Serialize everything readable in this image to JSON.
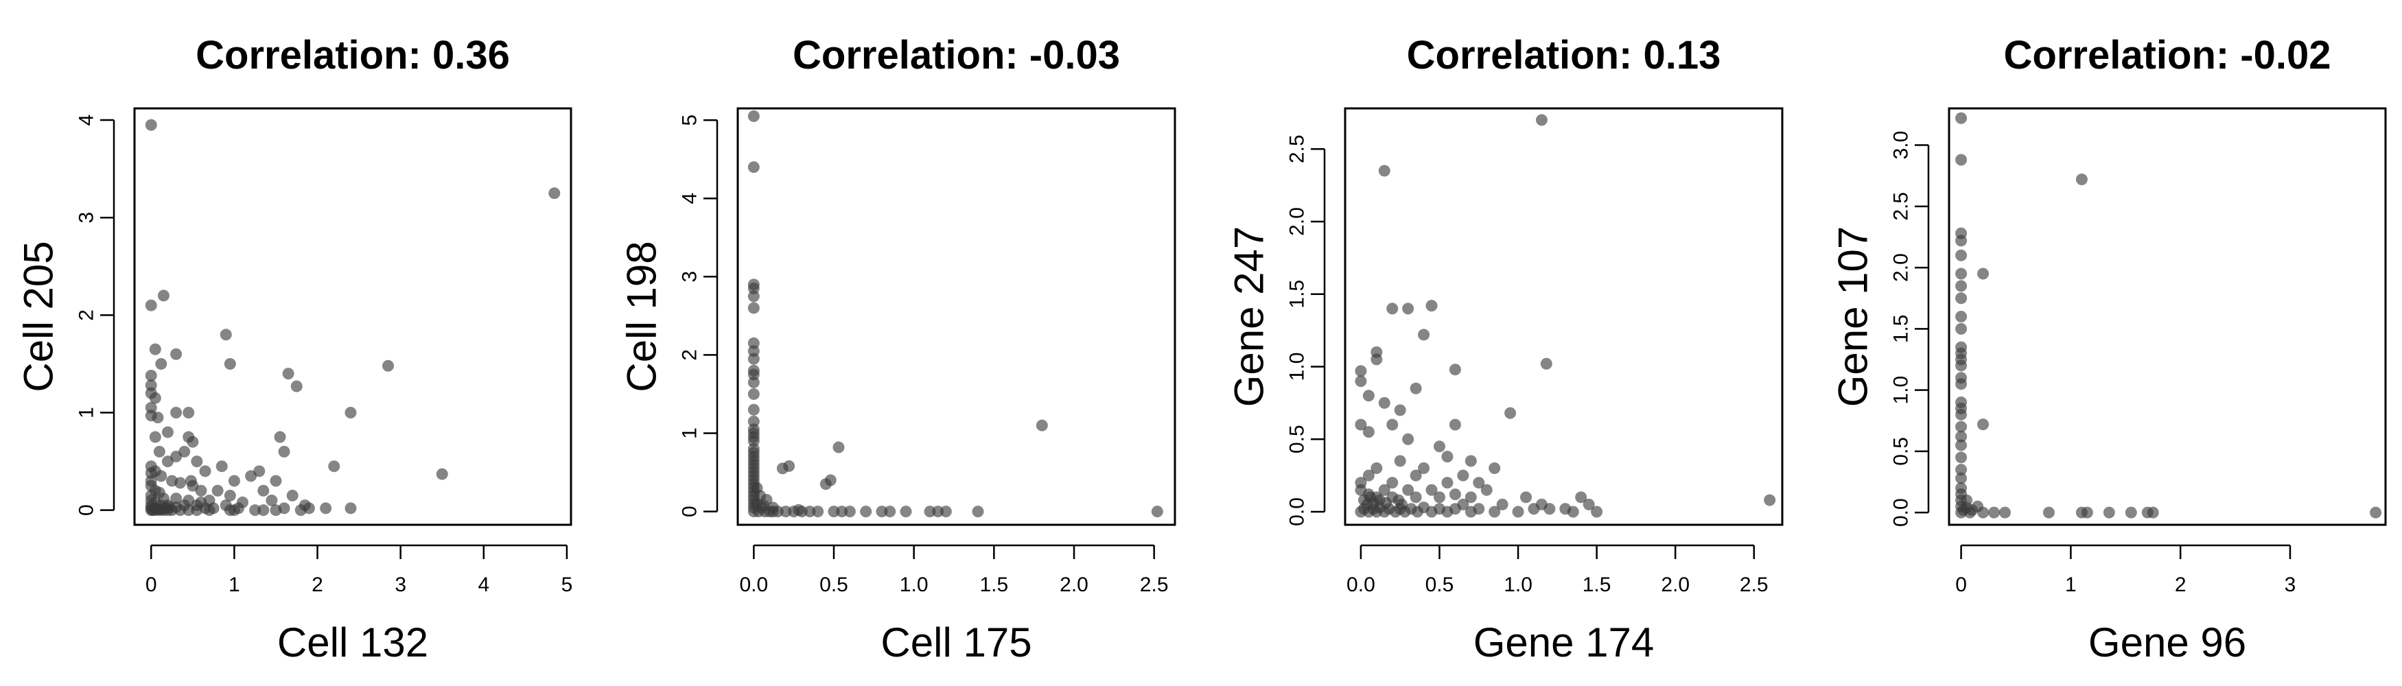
{
  "chart_data": [
    {
      "type": "scatter",
      "title": "Correlation: 0.36",
      "xlabel": "Cell 132",
      "ylabel": "Cell 205",
      "xlim": [
        -0.2,
        5.05
      ],
      "ylim": [
        -0.15,
        4.12
      ],
      "xticks": [
        0,
        1,
        2,
        3,
        4,
        5
      ],
      "yticks": [
        0,
        1,
        2,
        3,
        4
      ],
      "point_color": "#3a3a3a",
      "points": [
        [
          0,
          3.95
        ],
        [
          4.85,
          3.25
        ],
        [
          0.15,
          2.2
        ],
        [
          0,
          2.1
        ],
        [
          0.05,
          1.65
        ],
        [
          0.3,
          1.6
        ],
        [
          0.12,
          1.5
        ],
        [
          0,
          1.38
        ],
        [
          0,
          1.28
        ],
        [
          0,
          1.2
        ],
        [
          0.05,
          1.15
        ],
        [
          0,
          1.05
        ],
        [
          0,
          0.97
        ],
        [
          0.08,
          0.95
        ],
        [
          0.45,
          1.0
        ],
        [
          0.2,
          0.8
        ],
        [
          0.05,
          0.75
        ],
        [
          0.5,
          0.7
        ],
        [
          0.45,
          0.75
        ],
        [
          0.1,
          0.6
        ],
        [
          0.3,
          0.55
        ],
        [
          0.2,
          0.5
        ],
        [
          0,
          0.45
        ],
        [
          0.05,
          0.4
        ],
        [
          0,
          0.38
        ],
        [
          0.12,
          0.35
        ],
        [
          0.25,
          0.3
        ],
        [
          0.35,
          0.28
        ],
        [
          0.48,
          0.3
        ],
        [
          0.5,
          0.25
        ],
        [
          0,
          0.3
        ],
        [
          0,
          0.25
        ],
        [
          0.05,
          0.2
        ],
        [
          0.1,
          0.18
        ],
        [
          0,
          0.15
        ],
        [
          0.15,
          0.12
        ],
        [
          0.3,
          0.12
        ],
        [
          0.45,
          0.1
        ],
        [
          0.6,
          0.08
        ],
        [
          0.7,
          0.1
        ],
        [
          0,
          0.1
        ],
        [
          0.05,
          0.08
        ],
        [
          0.12,
          0.05
        ],
        [
          0.2,
          0.05
        ],
        [
          0.3,
          0.03
        ],
        [
          0.4,
          0.05
        ],
        [
          0.55,
          0.05
        ],
        [
          0.65,
          0.02
        ],
        [
          0,
          0.05
        ],
        [
          0.05,
          0.02
        ],
        [
          0.1,
          0
        ],
        [
          0.15,
          0
        ],
        [
          0.2,
          0
        ],
        [
          0.25,
          0
        ],
        [
          0.35,
          0
        ],
        [
          0.45,
          0
        ],
        [
          0.55,
          0
        ],
        [
          0.7,
          0
        ],
        [
          0.75,
          0.02
        ],
        [
          0.9,
          0.05
        ],
        [
          0.95,
          0
        ],
        [
          1.0,
          0
        ],
        [
          1.05,
          0.02
        ],
        [
          1.25,
          0
        ],
        [
          1.35,
          0
        ],
        [
          1.5,
          0
        ],
        [
          1.6,
          0.02
        ],
        [
          1.8,
          0
        ],
        [
          1.9,
          0.02
        ],
        [
          2.1,
          0.02
        ],
        [
          0.9,
          1.8
        ],
        [
          0.95,
          1.5
        ],
        [
          0.85,
          0.45
        ],
        [
          1.0,
          0.3
        ],
        [
          1.2,
          0.35
        ],
        [
          1.3,
          0.4
        ],
        [
          1.5,
          0.3
        ],
        [
          1.55,
          0.75
        ],
        [
          1.6,
          0.6
        ],
        [
          1.65,
          1.4
        ],
        [
          1.75,
          1.27
        ],
        [
          1.35,
          0.2
        ],
        [
          1.45,
          0.1
        ],
        [
          1.7,
          0.15
        ],
        [
          1.85,
          0.05
        ],
        [
          2.2,
          0.45
        ],
        [
          2.4,
          1.0
        ],
        [
          2.4,
          0.02
        ],
        [
          2.85,
          1.48
        ],
        [
          3.5,
          0.37
        ],
        [
          0.55,
          0.5
        ],
        [
          0.65,
          0.4
        ],
        [
          0.8,
          0.2
        ],
        [
          0.95,
          0.15
        ],
        [
          1.1,
          0.08
        ],
        [
          0.3,
          1.0
        ],
        [
          0.4,
          0.6
        ],
        [
          0.6,
          0.2
        ],
        [
          0,
          0
        ],
        [
          0.02,
          0
        ],
        [
          0.05,
          0
        ],
        [
          0.08,
          0.01
        ],
        [
          0,
          0.02
        ],
        [
          0.12,
          0.01
        ],
        [
          0.18,
          0.02
        ],
        [
          0.22,
          0.03
        ]
      ]
    },
    {
      "type": "scatter",
      "title": "Correlation: -0.03",
      "xlabel": "Cell 175",
      "ylabel": "Cell 198",
      "xlim": [
        -0.1,
        2.63
      ],
      "ylim": [
        -0.17,
        5.15
      ],
      "xticks": [
        0.0,
        0.5,
        1.0,
        1.5,
        2.0,
        2.5
      ],
      "yticks": [
        0,
        1,
        2,
        3,
        4,
        5
      ],
      "point_color": "#3a3a3a",
      "points": [
        [
          0,
          5.05
        ],
        [
          0,
          4.4
        ],
        [
          0,
          2.9
        ],
        [
          0,
          2.85
        ],
        [
          0,
          2.75
        ],
        [
          0,
          2.6
        ],
        [
          0,
          2.15
        ],
        [
          0,
          2.05
        ],
        [
          0,
          1.95
        ],
        [
          0,
          1.8
        ],
        [
          0,
          1.75
        ],
        [
          0,
          1.65
        ],
        [
          0,
          1.5
        ],
        [
          0,
          1.3
        ],
        [
          0,
          1.15
        ],
        [
          0,
          1.05
        ],
        [
          0,
          1.0
        ],
        [
          0,
          0.95
        ],
        [
          0,
          0.9
        ],
        [
          0,
          0.8
        ],
        [
          0,
          0.75
        ],
        [
          0,
          0.7
        ],
        [
          0,
          0.65
        ],
        [
          0,
          0.6
        ],
        [
          0,
          0.55
        ],
        [
          0,
          0.5
        ],
        [
          0,
          0.45
        ],
        [
          0,
          0.4
        ],
        [
          0,
          0.35
        ],
        [
          0,
          0.3
        ],
        [
          0,
          0.25
        ],
        [
          0,
          0.2
        ],
        [
          0,
          0.15
        ],
        [
          0,
          0.1
        ],
        [
          0,
          0.05
        ],
        [
          0,
          0
        ],
        [
          0.02,
          0.3
        ],
        [
          0.02,
          0.1
        ],
        [
          0.03,
          0
        ],
        [
          0.05,
          0.05
        ],
        [
          0.07,
          0
        ],
        [
          0.1,
          0
        ],
        [
          0.12,
          0
        ],
        [
          0.15,
          0
        ],
        [
          0.18,
          0.55
        ],
        [
          0.22,
          0.58
        ],
        [
          0.2,
          0
        ],
        [
          0.25,
          0
        ],
        [
          0.3,
          0
        ],
        [
          0.35,
          0
        ],
        [
          0.4,
          0
        ],
        [
          0.45,
          0.35
        ],
        [
          0.48,
          0.4
        ],
        [
          0.5,
          0
        ],
        [
          0.53,
          0.82
        ],
        [
          0.55,
          0
        ],
        [
          0.6,
          0
        ],
        [
          0.7,
          0
        ],
        [
          0.8,
          0
        ],
        [
          0.85,
          0
        ],
        [
          0.95,
          0
        ],
        [
          1.1,
          0
        ],
        [
          1.15,
          0
        ],
        [
          1.2,
          0
        ],
        [
          1.4,
          0
        ],
        [
          1.8,
          1.1
        ],
        [
          2.52,
          0
        ],
        [
          0.08,
          0.15
        ],
        [
          0.12,
          0.05
        ],
        [
          0.04,
          0.2
        ],
        [
          0.06,
          0.08
        ],
        [
          0.28,
          0.02
        ]
      ]
    },
    {
      "type": "scatter",
      "title": "Correlation: 0.13",
      "xlabel": "Gene 174",
      "ylabel": "Gene 247",
      "xlim": [
        -0.1,
        2.68
      ],
      "ylim": [
        -0.09,
        2.78
      ],
      "xticks": [
        0.0,
        0.5,
        1.0,
        1.5,
        2.0,
        2.5
      ],
      "yticks": [
        0.0,
        0.5,
        1.0,
        1.5,
        2.0,
        2.5
      ],
      "point_color": "#3a3a3a",
      "points": [
        [
          1.15,
          2.7
        ],
        [
          0.15,
          2.35
        ],
        [
          0.1,
          1.1
        ],
        [
          0.1,
          1.05
        ],
        [
          0.2,
          1.4
        ],
        [
          0.3,
          1.4
        ],
        [
          0.45,
          1.42
        ],
        [
          0.4,
          1.22
        ],
        [
          1.18,
          1.02
        ],
        [
          0,
          0.97
        ],
        [
          0,
          0.9
        ],
        [
          0.05,
          0.8
        ],
        [
          0.15,
          0.75
        ],
        [
          0.6,
          0.98
        ],
        [
          0.35,
          0.85
        ],
        [
          0.25,
          0.7
        ],
        [
          0,
          0.6
        ],
        [
          0.05,
          0.55
        ],
        [
          0.2,
          0.6
        ],
        [
          0.3,
          0.5
        ],
        [
          0.5,
          0.45
        ],
        [
          0.55,
          0.38
        ],
        [
          0.6,
          0.6
        ],
        [
          0.95,
          0.68
        ],
        [
          0.85,
          0.3
        ],
        [
          0.7,
          0.35
        ],
        [
          0.4,
          0.3
        ],
        [
          0.35,
          0.25
        ],
        [
          0.2,
          0.2
        ],
        [
          0.25,
          0.35
        ],
        [
          0.1,
          0.3
        ],
        [
          0.05,
          0.25
        ],
        [
          0,
          0.2
        ],
        [
          0,
          0.15
        ],
        [
          0.05,
          0.12
        ],
        [
          0.1,
          0.1
        ],
        [
          0.15,
          0.15
        ],
        [
          0.2,
          0.1
        ],
        [
          0.3,
          0.15
        ],
        [
          0.35,
          0.1
        ],
        [
          0.45,
          0.15
        ],
        [
          0.5,
          0.1
        ],
        [
          0.55,
          0.2
        ],
        [
          0.6,
          0.12
        ],
        [
          0.65,
          0.05
        ],
        [
          0.7,
          0.1
        ],
        [
          0.8,
          0.15
        ],
        [
          0.9,
          0.05
        ],
        [
          1.05,
          0.1
        ],
        [
          1.15,
          0.05
        ],
        [
          1.2,
          0.02
        ],
        [
          1.35,
          0
        ],
        [
          1.4,
          0.1
        ],
        [
          1.45,
          0.05
        ],
        [
          1.5,
          0
        ],
        [
          2.6,
          0.08
        ],
        [
          0,
          0
        ],
        [
          0.02,
          0.02
        ],
        [
          0.05,
          0
        ],
        [
          0.08,
          0.02
        ],
        [
          0.1,
          0
        ],
        [
          0.12,
          0.03
        ],
        [
          0.15,
          0
        ],
        [
          0.18,
          0.02
        ],
        [
          0.22,
          0
        ],
        [
          0.25,
          0.02
        ],
        [
          0.28,
          0
        ],
        [
          0.32,
          0.02
        ],
        [
          0.36,
          0
        ],
        [
          0.4,
          0.03
        ],
        [
          0.45,
          0
        ],
        [
          0.5,
          0.02
        ],
        [
          0.55,
          0
        ],
        [
          0.6,
          0.02
        ],
        [
          0.7,
          0
        ],
        [
          0.75,
          0.02
        ],
        [
          0.85,
          0
        ],
        [
          1.0,
          0
        ],
        [
          1.1,
          0.02
        ],
        [
          1.3,
          0.02
        ],
        [
          0.02,
          0.08
        ],
        [
          0.04,
          0.05
        ],
        [
          0.06,
          0.1
        ],
        [
          0.08,
          0.06
        ],
        [
          0.12,
          0.08
        ],
        [
          0.16,
          0.06
        ],
        [
          0.24,
          0.08
        ],
        [
          0.26,
          0.05
        ],
        [
          0.65,
          0.25
        ],
        [
          0.75,
          0.2
        ]
      ]
    },
    {
      "type": "scatter",
      "title": "Correlation: -0.02",
      "xlabel": "Gene 96",
      "ylabel": "Gene 107",
      "xlim": [
        -0.11,
        3.87
      ],
      "ylim": [
        -0.1,
        3.3
      ],
      "xticks": [
        0,
        1,
        2,
        3
      ],
      "yticks": [
        0.0,
        0.5,
        1.0,
        1.5,
        2.0,
        2.5,
        3.0
      ],
      "point_color": "#3a3a3a",
      "points": [
        [
          0,
          3.22
        ],
        [
          0,
          2.88
        ],
        [
          1.1,
          2.72
        ],
        [
          0,
          2.28
        ],
        [
          0,
          2.22
        ],
        [
          0,
          2.1
        ],
        [
          0.2,
          1.95
        ],
        [
          0,
          1.95
        ],
        [
          0,
          1.85
        ],
        [
          0,
          1.75
        ],
        [
          0,
          1.6
        ],
        [
          0,
          1.5
        ],
        [
          0,
          1.35
        ],
        [
          0,
          1.3
        ],
        [
          0,
          1.25
        ],
        [
          0,
          1.2
        ],
        [
          0,
          1.1
        ],
        [
          0,
          1.05
        ],
        [
          0,
          0.9
        ],
        [
          0,
          0.85
        ],
        [
          0,
          0.8
        ],
        [
          0,
          0.7
        ],
        [
          0,
          0.62
        ],
        [
          0,
          0.55
        ],
        [
          0,
          0.45
        ],
        [
          0,
          0.35
        ],
        [
          0,
          0.28
        ],
        [
          0,
          0.2
        ],
        [
          0,
          0.15
        ],
        [
          0,
          0.1
        ],
        [
          0,
          0.05
        ],
        [
          0,
          0
        ],
        [
          0.2,
          0.72
        ],
        [
          0.05,
          0.1
        ],
        [
          0.08,
          0
        ],
        [
          0.15,
          0.05
        ],
        [
          0.2,
          0
        ],
        [
          0.3,
          0
        ],
        [
          0.4,
          0
        ],
        [
          0.8,
          0
        ],
        [
          1.1,
          0
        ],
        [
          1.15,
          0
        ],
        [
          1.35,
          0
        ],
        [
          1.55,
          0
        ],
        [
          1.7,
          0
        ],
        [
          1.75,
          0
        ],
        [
          3.78,
          0
        ],
        [
          0.02,
          0.02
        ],
        [
          0.05,
          0.04
        ],
        [
          0.1,
          0.02
        ]
      ]
    }
  ]
}
